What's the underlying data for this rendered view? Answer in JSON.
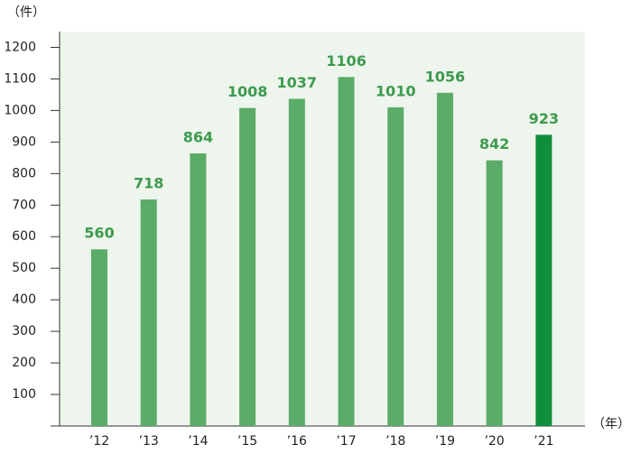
{
  "chart_data": {
    "type": "bar",
    "y_label": "（件）",
    "x_label": "（年）",
    "categories": [
      "’12",
      "’13",
      "’14",
      "’15",
      "’16",
      "’17",
      "’18",
      "’19",
      "’20",
      "’21"
    ],
    "values": [
      560,
      718,
      864,
      1008,
      1037,
      1106,
      1010,
      1056,
      842,
      923
    ],
    "colors": [
      "#5bab69",
      "#5bab69",
      "#5bab69",
      "#5bab69",
      "#5bab69",
      "#5bab69",
      "#5bab69",
      "#5bab69",
      "#5bab69",
      "#0f8f3c"
    ],
    "label_color": "#3d9a4e",
    "ylim": [
      0,
      1250
    ],
    "yticks": [
      100,
      200,
      300,
      400,
      500,
      600,
      700,
      800,
      900,
      1000,
      1100,
      1200
    ]
  }
}
